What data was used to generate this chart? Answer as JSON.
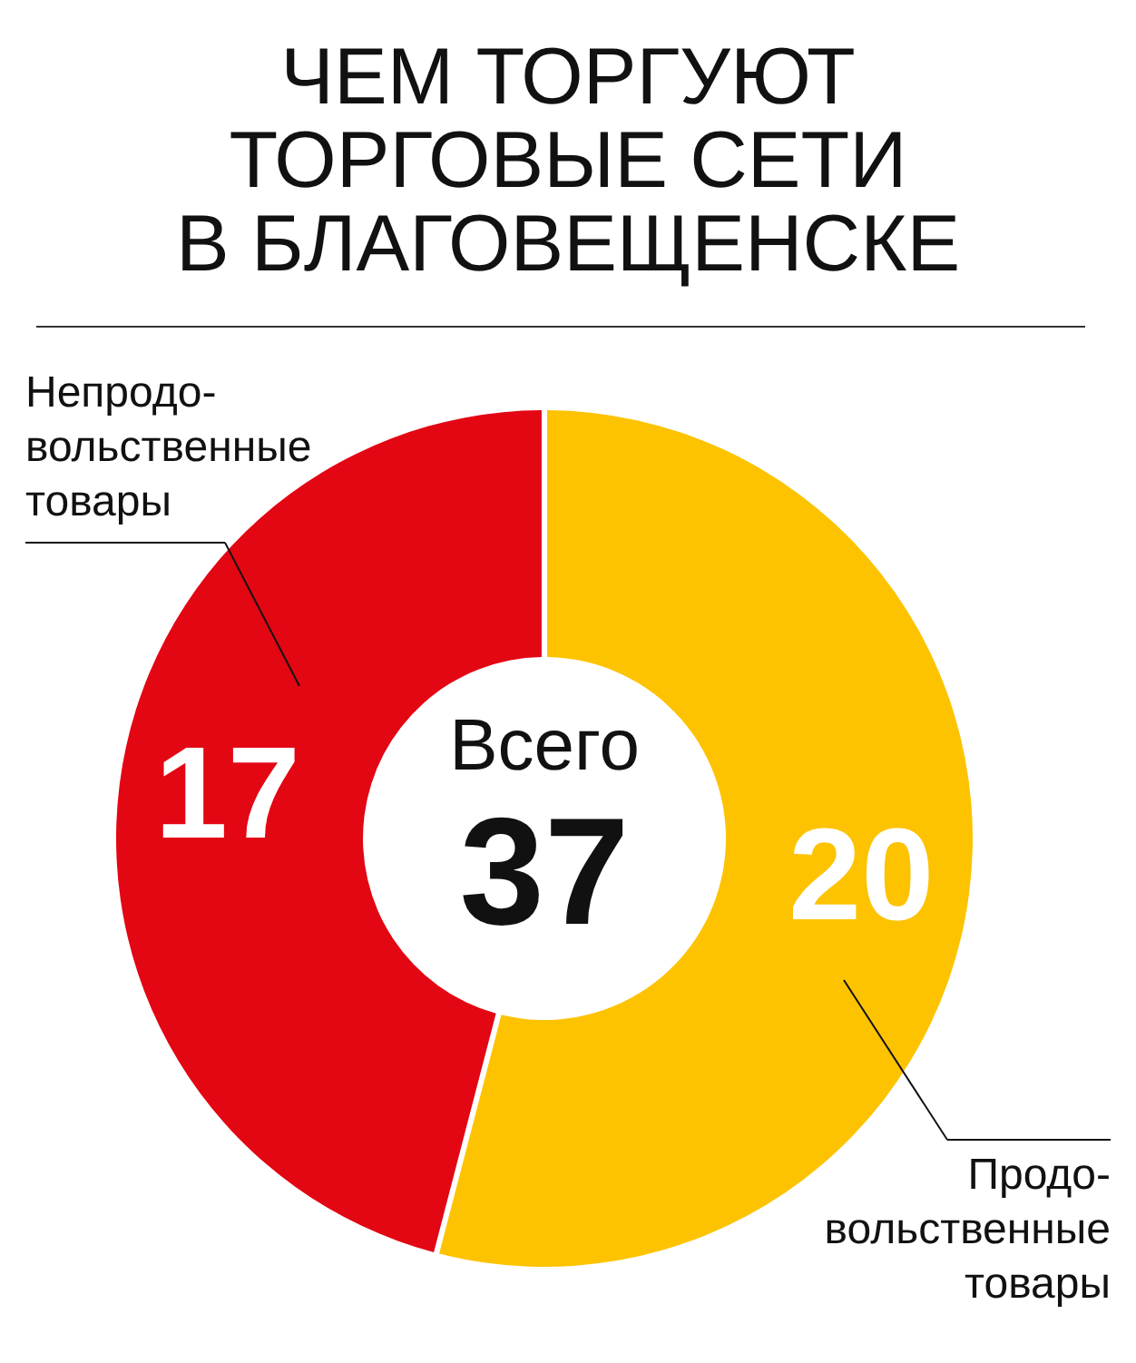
{
  "chart_data": {
    "type": "donut",
    "title": "ЧЕМ ТОРГУЮТ ТОРГОВЫЕ СЕТИ В БЛАГОВЕЩЕНСКЕ",
    "categories": [
      "Непродо-вольственные товары",
      "Продо-вольственные товары"
    ],
    "values": [
      17,
      20
    ],
    "colors": [
      "#e30613",
      "#fdc300"
    ],
    "data_labels": true,
    "annotations": [
      "Всего",
      "37"
    ]
  }
}
